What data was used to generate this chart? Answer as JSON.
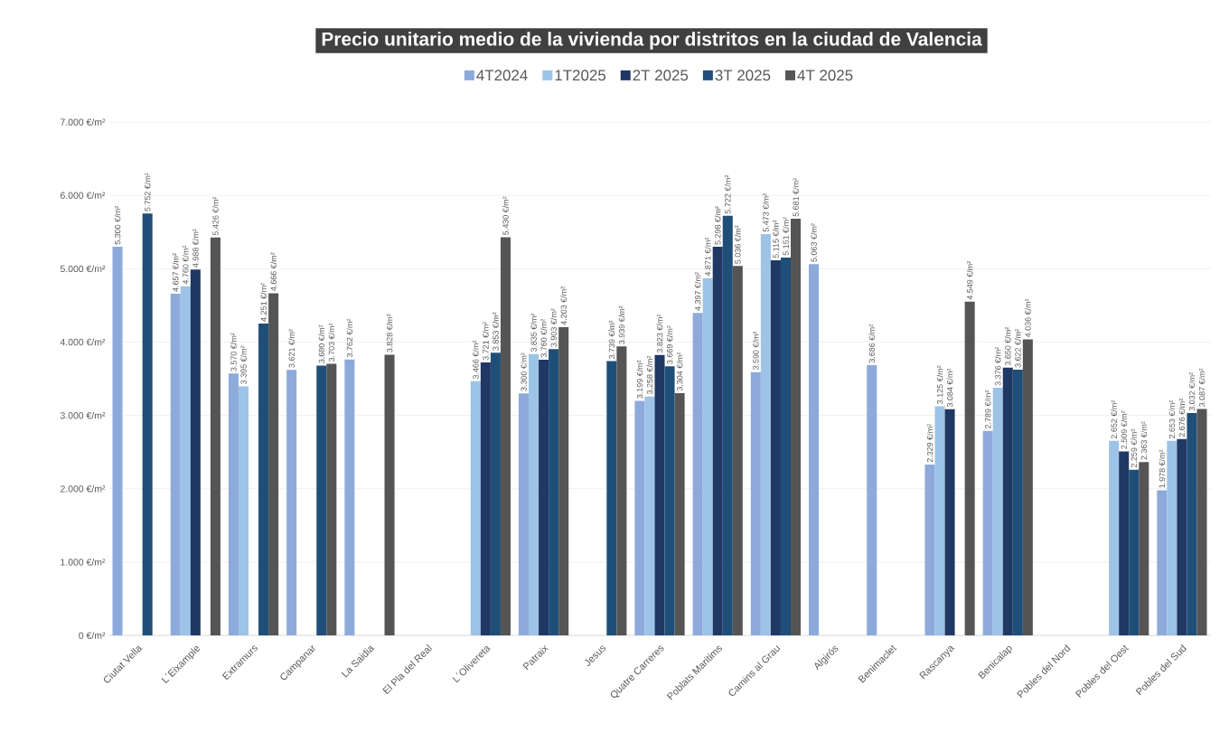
{
  "chart_data": {
    "type": "bar",
    "title": "Precio unitario medio de la vivienda por distritos en la ciudad de Valencia",
    "categories": [
      "Ciutat Vella",
      "L´Eixample",
      "Extramurs",
      "Campanar",
      "La Saidia",
      "El Pla del Real",
      "L´Olivereta",
      "Patraix",
      "Jesus",
      "Quatre Carreres",
      "Poblats Maritims",
      "Camins al Grau",
      "Algirós",
      "Benimaclet",
      "Rascanya",
      "Benicalap",
      "Pobles del Nord",
      "Pobles del Oest",
      "Pobles del Sud"
    ],
    "series": [
      {
        "name": "4T2024",
        "color": "#8eaadb",
        "values": [
          5300,
          4657,
          3570,
          3621,
          3762,
          null,
          null,
          3300,
          null,
          3199,
          4397,
          3590,
          5063,
          3686,
          2329,
          2789,
          null,
          null,
          1978
        ],
        "value_labels": [
          "5.300 €/m²",
          "4.657 €/m²",
          "3.570 €/m²",
          "3.621 €/m²",
          "3.762 €/m²",
          null,
          null,
          "3.300 €/m²",
          null,
          "3.199 €/m²",
          "4.397 €/m²",
          "3.590 €/m²",
          "5.063 €/m²",
          "3.686 €/m²",
          "2.329 €/m²",
          "2.789 €/m²",
          null,
          null,
          "1.978 €/m²"
        ]
      },
      {
        "name": "1T2025",
        "color": "#9dc3e6",
        "values": [
          null,
          4760,
          3395,
          null,
          null,
          null,
          3466,
          3835,
          null,
          3258,
          4871,
          5473,
          null,
          null,
          3125,
          3376,
          null,
          2652,
          2653
        ],
        "value_labels": [
          null,
          "4.760 €/m²",
          "3.395 €/m²",
          null,
          null,
          null,
          "3.466 €/m²",
          "3.835 €/m²",
          null,
          "3.258 €/m²",
          "4.871 €/m²",
          "5.473 €/m²",
          null,
          null,
          "3.125 €/m²",
          "3.376 €/m²",
          null,
          "2.652 €/m²",
          "2.653 €/m²"
        ]
      },
      {
        "name": "2T 2025",
        "color": "#203864",
        "values": [
          null,
          4988,
          null,
          null,
          null,
          null,
          3721,
          3760,
          null,
          3823,
          5298,
          5115,
          null,
          null,
          3084,
          3650,
          null,
          2509,
          2676
        ],
        "value_labels": [
          null,
          "4.988 €/m²",
          null,
          null,
          null,
          null,
          "3.721 €/m²",
          "3.760 €/m²",
          null,
          "3.823 €/m²",
          "5.298 €/m²",
          "5.115 €/m²",
          null,
          null,
          "3.084 €/m²",
          "3.650 €/m²",
          null,
          "2.509 €/m²",
          "2.676 €/m²"
        ]
      },
      {
        "name": "3T 2025",
        "color": "#1f4e79",
        "values": [
          5752,
          null,
          4251,
          3680,
          null,
          null,
          3853,
          3903,
          3739,
          3669,
          5722,
          5151,
          null,
          null,
          null,
          3622,
          null,
          2259,
          3032
        ],
        "value_labels": [
          "5.752 €/m²",
          null,
          "4.251 €/m²",
          "3.680 €/m²",
          null,
          null,
          "3.853 €/m²",
          "3.903 €/m²",
          "3.739 €/m²",
          "3.669 €/m²",
          "5.722 €/m²",
          "5.151 €/m²",
          null,
          null,
          null,
          "3.622 €/m²",
          null,
          "2.259 €/m²",
          "3.032 €/m²"
        ]
      },
      {
        "name": "4T 2025",
        "color": "#555555",
        "values": [
          null,
          5426,
          4666,
          3703,
          3828,
          null,
          5430,
          4203,
          3939,
          3304,
          5036,
          5681,
          null,
          null,
          4549,
          4036,
          null,
          2363,
          3087
        ],
        "value_labels": [
          null,
          "5.426 €/m²",
          "4.666 €/m²",
          "3.703 €/m²",
          "3.828 €/m²",
          null,
          "5.430 €/m²",
          "4.203 €/m²",
          "3.939 €/m²",
          "3.304 €/m²",
          "5.036 €/m²",
          "5.681 €/m²",
          null,
          null,
          "4.549 €/m²",
          "4.036 €/m²",
          null,
          "2.363 €/m²",
          "3.087 €/m²"
        ]
      }
    ],
    "ylim": [
      0,
      7000
    ],
    "yticks": [
      {
        "value": 0,
        "label": "0 €/m²"
      },
      {
        "value": 1000,
        "label": "1.000 €/m²"
      },
      {
        "value": 2000,
        "label": "2.000 €/m²"
      },
      {
        "value": 3000,
        "label": "3.000 €/m²"
      },
      {
        "value": 4000,
        "label": "4.000 €/m²"
      },
      {
        "value": 5000,
        "label": "5.000 €/m²"
      },
      {
        "value": 6000,
        "label": "6.000 €/m²"
      },
      {
        "value": 7000,
        "label": "7.000 €/m²"
      }
    ],
    "grid": "y",
    "legend": "top"
  }
}
